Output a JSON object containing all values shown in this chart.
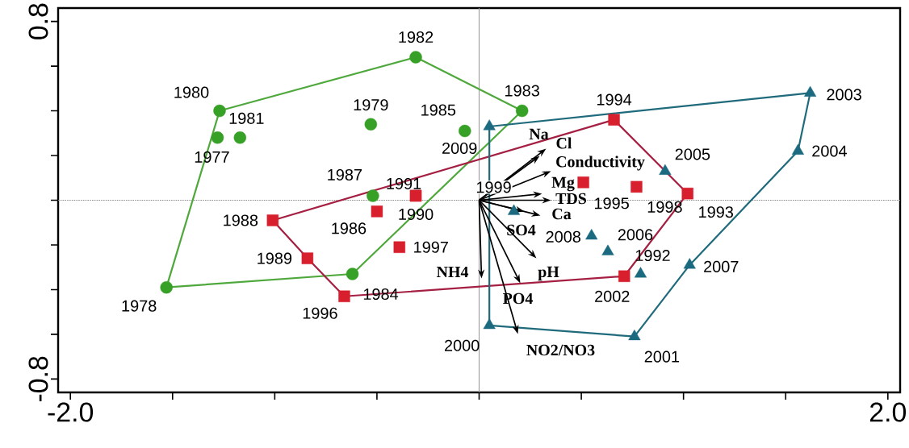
{
  "chart_data": {
    "type": "scatter",
    "xlim": [
      -2.06,
      2.06
    ],
    "ylim": [
      -0.86,
      0.86
    ],
    "xticks": [
      {
        "value": -2,
        "label": "-2.0"
      },
      {
        "value": -1.5,
        "label": null
      },
      {
        "value": -1,
        "label": null
      },
      {
        "value": -0.5,
        "label": null
      },
      {
        "value": 0,
        "label": null
      },
      {
        "value": 0.5,
        "label": null
      },
      {
        "value": 1,
        "label": null
      },
      {
        "value": 1.5,
        "label": null
      },
      {
        "value": 2,
        "label": "2.0"
      }
    ],
    "yticks": [
      {
        "value": -0.8,
        "label": "-0.8"
      },
      {
        "value": -0.6,
        "label": null
      },
      {
        "value": -0.4,
        "label": null
      },
      {
        "value": -0.2,
        "label": null
      },
      {
        "value": 0,
        "label": null
      },
      {
        "value": 0.2,
        "label": null
      },
      {
        "value": 0.4,
        "label": null
      },
      {
        "value": 0.6,
        "label": null
      },
      {
        "value": 0.8,
        "label": "0.8"
      }
    ],
    "ref_lines": [
      {
        "axis": "x",
        "value": 0,
        "color": "#9a9a9a",
        "line_style": "solid"
      },
      {
        "axis": "y",
        "value": 0,
        "color": "#8c8c8c",
        "line_style": "dotted"
      }
    ],
    "series": [
      {
        "type": "line",
        "color": "#4ea83c",
        "x": [
          -1.27,
          -0.31,
          0.21,
          -0.62,
          -1.53,
          -1.27
        ],
        "values": [
          0.4,
          0.64,
          0.4,
          -0.33,
          -0.39,
          0.4
        ]
      },
      {
        "type": "line",
        "color": "#a51f42",
        "x": [
          -1.01,
          0.66,
          1.02,
          0.71,
          -0.66,
          -0.84,
          -1.01
        ],
        "values": [
          -0.09,
          0.36,
          0.03,
          -0.34,
          -0.43,
          -0.26,
          -0.09
        ]
      },
      {
        "type": "line",
        "color": "#1f6b7c",
        "x": [
          0.05,
          1.62,
          1.56,
          1.03,
          0.76,
          0.05,
          0.05
        ],
        "values": [
          0.33,
          0.48,
          0.22,
          -0.29,
          -0.61,
          -0.56,
          0.33
        ]
      },
      {
        "color": "#37a026",
        "marker": "circle",
        "x": [
          -1.28,
          -1.53,
          -0.53,
          -1.27,
          -1.17,
          -0.31,
          0.21,
          -0.62,
          -0.07,
          -0.52
        ],
        "values": [
          0.28,
          -0.39,
          0.34,
          0.4,
          0.28,
          0.64,
          0.4,
          -0.33,
          0.31,
          0.02
        ]
      },
      {
        "color": "#d71f2d",
        "marker": "square",
        "x": [
          -0.5,
          -1.01,
          -0.84,
          -0.31,
          -0.31,
          1.02,
          0.66,
          0.51,
          -0.66,
          -0.39,
          0.77,
          0.71
        ],
        "values": [
          -0.05,
          -0.09,
          -0.26,
          0.02,
          0.02,
          0.03,
          0.36,
          0.08,
          -0.43,
          -0.21,
          0.06,
          -0.34
        ]
      },
      {
        "color": "#1b6a80",
        "marker": "triangle",
        "x": [
          0.79,
          0.17,
          0.05,
          0.76,
          1.62,
          1.56,
          0.91,
          0.63,
          1.03,
          0.55,
          0.05
        ],
        "values": [
          -0.33,
          -0.05,
          -0.56,
          -0.61,
          0.48,
          0.22,
          0.13,
          -0.23,
          -0.29,
          -0.16,
          0.33
        ]
      }
    ],
    "annotations": [
      {
        "text": "1977",
        "x": -1.28,
        "y": 0.28
      },
      {
        "text": "1978",
        "x": -1.53,
        "y": -0.39
      },
      {
        "text": "1979",
        "x": -0.53,
        "y": 0.34
      },
      {
        "text": "1980",
        "x": -1.27,
        "y": 0.4
      },
      {
        "text": "1981",
        "x": -1.17,
        "y": 0.28
      },
      {
        "text": "1982",
        "x": -0.31,
        "y": 0.64
      },
      {
        "text": "1983",
        "x": 0.21,
        "y": 0.4
      },
      {
        "text": "1984",
        "x": -0.62,
        "y": -0.33
      },
      {
        "text": "1985",
        "x": -0.07,
        "y": 0.31
      },
      {
        "text": "1987",
        "x": -0.52,
        "y": 0.02
      },
      {
        "text": "1986",
        "x": -0.5,
        "y": -0.05
      },
      {
        "text": "1988",
        "x": -1.01,
        "y": -0.09
      },
      {
        "text": "1989",
        "x": -0.84,
        "y": -0.26
      },
      {
        "text": "1990",
        "x": -0.31,
        "y": 0.02
      },
      {
        "text": "1991",
        "x": -0.31,
        "y": 0.02
      },
      {
        "text": "1993",
        "x": 1.02,
        "y": 0.03
      },
      {
        "text": "1994",
        "x": 0.66,
        "y": 0.36
      },
      {
        "text": "1995",
        "x": 0.51,
        "y": 0.08
      },
      {
        "text": "1996",
        "x": -0.66,
        "y": -0.43
      },
      {
        "text": "1997",
        "x": -0.39,
        "y": -0.21
      },
      {
        "text": "1998",
        "x": 0.77,
        "y": 0.06
      },
      {
        "text": "2002",
        "x": 0.71,
        "y": -0.34
      },
      {
        "text": "1992",
        "x": 0.79,
        "y": -0.33
      },
      {
        "text": "1999",
        "x": 0.17,
        "y": -0.05
      },
      {
        "text": "2000",
        "x": 0.05,
        "y": -0.56
      },
      {
        "text": "2001",
        "x": 0.76,
        "y": -0.61
      },
      {
        "text": "2003",
        "x": 1.62,
        "y": 0.48
      },
      {
        "text": "2004",
        "x": 1.56,
        "y": 0.22
      },
      {
        "text": "2005",
        "x": 0.91,
        "y": 0.13
      },
      {
        "text": "2006",
        "x": 0.63,
        "y": -0.23
      },
      {
        "text": "2007",
        "x": 1.03,
        "y": -0.29
      },
      {
        "text": "2008",
        "x": 0.55,
        "y": -0.16
      },
      {
        "text": "2009",
        "x": 0.05,
        "y": 0.33
      },
      "Na",
      "Cl",
      "Conductivity",
      "Mg",
      "TDS",
      "Ca",
      "SO4",
      "pH",
      "PO4",
      "NH4",
      "NO2/NO3"
    ]
  }
}
